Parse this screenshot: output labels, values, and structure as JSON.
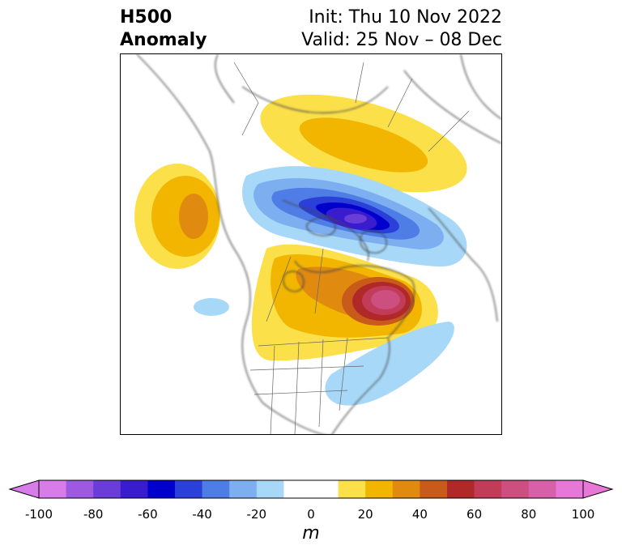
{
  "header": {
    "title_line1": "H500",
    "title_line2": "Anomaly",
    "init_label": "Init: Thu 10 Nov 2022",
    "valid_label": "Valid: 25 Nov – 08 Dec"
  },
  "colorbar": {
    "unit": "m",
    "ticks": [
      "-100",
      "-80",
      "-60",
      "-40",
      "-20",
      "0",
      "20",
      "40",
      "60",
      "80",
      "100"
    ],
    "bins": [
      "#d77ce8",
      "#9d5ae0",
      "#6a3dd8",
      "#3a1ccf",
      "#0000cc",
      "#2b3fd9",
      "#4f7de6",
      "#7daff0",
      "#a8d8f8",
      "#ffffff",
      "#ffffff",
      "#fbe04a",
      "#f2b500",
      "#e08a10",
      "#c85a1a",
      "#b02828",
      "#c23c5a",
      "#cc4f7f",
      "#d860a8",
      "#e878d8"
    ],
    "min_color": "#d77ce8",
    "max_color": "#e878d8"
  }
}
